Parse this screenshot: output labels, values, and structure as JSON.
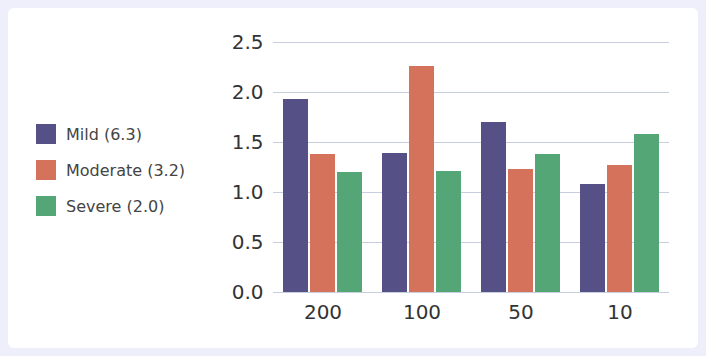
{
  "chart_data": {
    "type": "bar",
    "categories": [
      "200",
      "100",
      "50",
      "10"
    ],
    "series": [
      {
        "name": "Mild (6.3)",
        "color": "#555186",
        "values": [
          1.93,
          1.39,
          1.7,
          1.08
        ]
      },
      {
        "name": "Moderate (3.2)",
        "color": "#d4725c",
        "values": [
          1.38,
          2.26,
          1.23,
          1.27
        ]
      },
      {
        "name": "Severe (2.0)",
        "color": "#55a676",
        "values": [
          1.2,
          1.21,
          1.38,
          1.58
        ]
      }
    ],
    "ylim": [
      0,
      2.5
    ],
    "yticks": [
      {
        "value": 0,
        "label": "0.0"
      },
      0.5,
      {
        "value": 1,
        "label": "1.0"
      },
      1.5,
      {
        "value": 2,
        "label": "2.0"
      },
      2.5
    ],
    "grid": true,
    "legend": "left"
  }
}
